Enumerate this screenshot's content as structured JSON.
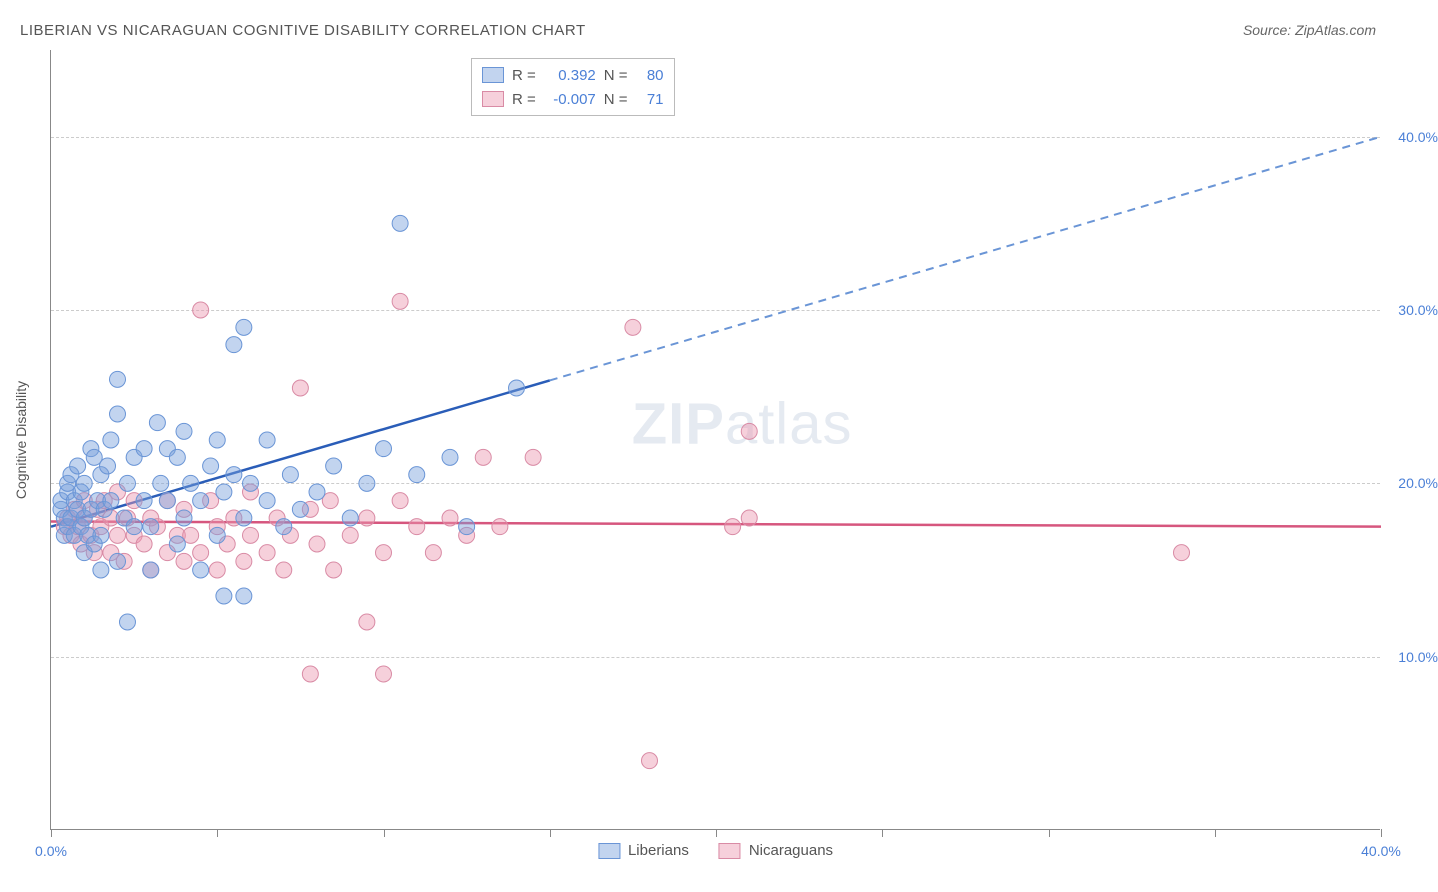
{
  "title": "LIBERIAN VS NICARAGUAN COGNITIVE DISABILITY CORRELATION CHART",
  "source": "Source: ZipAtlas.com",
  "watermark_zip": "ZIP",
  "watermark_atlas": "atlas",
  "y_axis_label": "Cognitive Disability",
  "chart": {
    "type": "scatter",
    "x_domain": [
      0,
      40
    ],
    "y_domain": [
      0,
      45
    ],
    "y_gridlines": [
      10,
      20,
      30,
      40
    ],
    "y_tick_labels": [
      "10.0%",
      "20.0%",
      "30.0%",
      "40.0%"
    ],
    "x_ticks": [
      0,
      5,
      10,
      15,
      20,
      25,
      30,
      35,
      40
    ],
    "x_tick_labels": {
      "0": "0.0%",
      "40": "40.0%"
    },
    "background_color": "#ffffff",
    "grid_color": "#cccccc",
    "axis_color": "#888888",
    "series_blue": {
      "label": "Liberians",
      "fill": "rgba(120,160,220,0.45)",
      "stroke": "#6a95d6",
      "marker_radius": 8,
      "trend": {
        "x1": 0,
        "y1": 17.5,
        "x2": 40,
        "y2": 40,
        "solid_until_x": 15,
        "solid_color": "#2a5db8",
        "dash_color": "#6a95d6"
      },
      "R": "0.392",
      "N": "80",
      "points": [
        [
          0.3,
          18.5
        ],
        [
          0.3,
          19.0
        ],
        [
          0.4,
          17.0
        ],
        [
          0.4,
          18.0
        ],
        [
          0.5,
          17.5
        ],
        [
          0.5,
          19.5
        ],
        [
          0.5,
          20.0
        ],
        [
          0.6,
          18.0
        ],
        [
          0.6,
          20.5
        ],
        [
          0.7,
          17.0
        ],
        [
          0.7,
          19.0
        ],
        [
          0.8,
          18.5
        ],
        [
          0.8,
          21.0
        ],
        [
          0.9,
          17.5
        ],
        [
          0.9,
          19.5
        ],
        [
          1.0,
          16.0
        ],
        [
          1.0,
          18.0
        ],
        [
          1.0,
          20.0
        ],
        [
          1.1,
          17.0
        ],
        [
          1.2,
          18.5
        ],
        [
          1.2,
          22.0
        ],
        [
          1.3,
          16.5
        ],
        [
          1.3,
          21.5
        ],
        [
          1.4,
          19.0
        ],
        [
          1.5,
          15.0
        ],
        [
          1.5,
          17.0
        ],
        [
          1.5,
          20.5
        ],
        [
          1.6,
          18.5
        ],
        [
          1.7,
          21.0
        ],
        [
          1.8,
          19.0
        ],
        [
          1.8,
          22.5
        ],
        [
          2.0,
          15.5
        ],
        [
          2.0,
          24.0
        ],
        [
          2.0,
          26.0
        ],
        [
          2.2,
          18.0
        ],
        [
          2.3,
          12.0
        ],
        [
          2.3,
          20.0
        ],
        [
          2.5,
          17.5
        ],
        [
          2.5,
          21.5
        ],
        [
          2.8,
          19.0
        ],
        [
          2.8,
          22.0
        ],
        [
          3.0,
          15.0
        ],
        [
          3.0,
          17.5
        ],
        [
          3.2,
          23.5
        ],
        [
          3.3,
          20.0
        ],
        [
          3.5,
          19.0
        ],
        [
          3.5,
          22.0
        ],
        [
          3.8,
          16.5
        ],
        [
          3.8,
          21.5
        ],
        [
          4.0,
          18.0
        ],
        [
          4.0,
          23.0
        ],
        [
          4.2,
          20.0
        ],
        [
          4.5,
          15.0
        ],
        [
          4.5,
          19.0
        ],
        [
          4.8,
          21.0
        ],
        [
          5.0,
          17.0
        ],
        [
          5.0,
          22.5
        ],
        [
          5.2,
          13.5
        ],
        [
          5.2,
          19.5
        ],
        [
          5.5,
          20.5
        ],
        [
          5.5,
          28.0
        ],
        [
          5.8,
          13.5
        ],
        [
          5.8,
          18.0
        ],
        [
          5.8,
          29.0
        ],
        [
          6.0,
          20.0
        ],
        [
          6.5,
          19.0
        ],
        [
          6.5,
          22.5
        ],
        [
          7.0,
          17.5
        ],
        [
          7.2,
          20.5
        ],
        [
          7.5,
          18.5
        ],
        [
          8.0,
          19.5
        ],
        [
          8.5,
          21.0
        ],
        [
          9.0,
          18.0
        ],
        [
          9.5,
          20.0
        ],
        [
          10.0,
          22.0
        ],
        [
          10.5,
          35.0
        ],
        [
          11.0,
          20.5
        ],
        [
          12.0,
          21.5
        ],
        [
          12.5,
          17.5
        ],
        [
          14.0,
          25.5
        ]
      ]
    },
    "series_pink": {
      "label": "Nicaraguans",
      "fill": "rgba(235,150,175,0.45)",
      "stroke": "#d98ba5",
      "marker_radius": 8,
      "trend": {
        "x1": 0,
        "y1": 17.8,
        "x2": 40,
        "y2": 17.5,
        "color": "#d6567e"
      },
      "R": "-0.007",
      "N": "71",
      "points": [
        [
          0.4,
          17.5
        ],
        [
          0.5,
          18.0
        ],
        [
          0.6,
          17.0
        ],
        [
          0.7,
          18.5
        ],
        [
          0.8,
          17.5
        ],
        [
          0.9,
          16.5
        ],
        [
          1.0,
          18.0
        ],
        [
          1.0,
          19.0
        ],
        [
          1.2,
          17.0
        ],
        [
          1.3,
          16.0
        ],
        [
          1.4,
          18.5
        ],
        [
          1.5,
          17.5
        ],
        [
          1.6,
          19.0
        ],
        [
          1.8,
          16.0
        ],
        [
          1.8,
          18.0
        ],
        [
          2.0,
          17.0
        ],
        [
          2.0,
          19.5
        ],
        [
          2.2,
          15.5
        ],
        [
          2.3,
          18.0
        ],
        [
          2.5,
          17.0
        ],
        [
          2.5,
          19.0
        ],
        [
          2.8,
          16.5
        ],
        [
          3.0,
          18.0
        ],
        [
          3.0,
          15.0
        ],
        [
          3.2,
          17.5
        ],
        [
          3.5,
          16.0
        ],
        [
          3.5,
          19.0
        ],
        [
          3.8,
          17.0
        ],
        [
          4.0,
          15.5
        ],
        [
          4.0,
          18.5
        ],
        [
          4.2,
          17.0
        ],
        [
          4.5,
          16.0
        ],
        [
          4.5,
          30.0
        ],
        [
          4.8,
          19.0
        ],
        [
          5.0,
          15.0
        ],
        [
          5.0,
          17.5
        ],
        [
          5.3,
          16.5
        ],
        [
          5.5,
          18.0
        ],
        [
          5.8,
          15.5
        ],
        [
          6.0,
          17.0
        ],
        [
          6.0,
          19.5
        ],
        [
          6.5,
          16.0
        ],
        [
          6.8,
          18.0
        ],
        [
          7.0,
          15.0
        ],
        [
          7.2,
          17.0
        ],
        [
          7.5,
          25.5
        ],
        [
          7.8,
          18.5
        ],
        [
          7.8,
          9.0
        ],
        [
          8.0,
          16.5
        ],
        [
          8.4,
          19.0
        ],
        [
          8.5,
          15.0
        ],
        [
          9.0,
          17.0
        ],
        [
          9.5,
          18.0
        ],
        [
          9.5,
          12.0
        ],
        [
          10.0,
          16.0
        ],
        [
          10.0,
          9.0
        ],
        [
          10.5,
          19.0
        ],
        [
          10.5,
          30.5
        ],
        [
          11.0,
          17.5
        ],
        [
          11.5,
          16.0
        ],
        [
          12.0,
          18.0
        ],
        [
          12.5,
          17.0
        ],
        [
          13.0,
          21.5
        ],
        [
          13.5,
          17.5
        ],
        [
          14.5,
          21.5
        ],
        [
          17.5,
          29.0
        ],
        [
          18.0,
          4.0
        ],
        [
          20.5,
          17.5
        ],
        [
          21.0,
          23.0
        ],
        [
          21.0,
          18.0
        ],
        [
          34.0,
          16.0
        ]
      ]
    }
  },
  "legend_top_r_label": "R =",
  "legend_top_n_label": "N =",
  "legend_bottom_pos_bottom": -30
}
